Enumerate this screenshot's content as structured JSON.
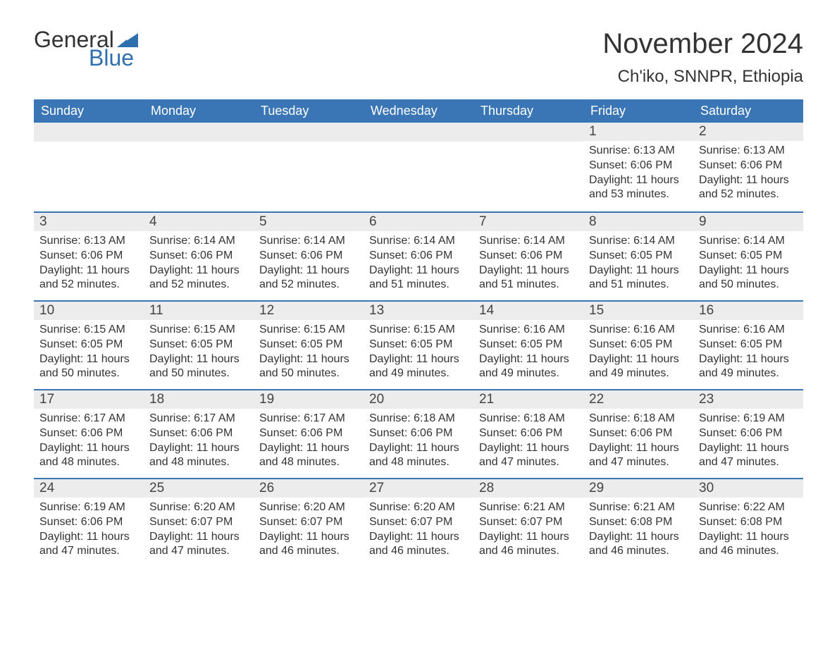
{
  "brand": {
    "text1": "General",
    "text2": "Blue",
    "icon_color": "#2f6fae"
  },
  "title": "November 2024",
  "location": "Ch'iko, SNNPR, Ethiopia",
  "colors": {
    "header_bg": "#3a76b5",
    "header_text": "#ffffff",
    "row_divider": "#3a76b5",
    "daynum_bg": "#ececec",
    "body_text": "#333333",
    "page_bg": "#ffffff"
  },
  "typography": {
    "title_fontsize": 40,
    "location_fontsize": 24,
    "weekday_fontsize": 18,
    "daynum_fontsize": 19,
    "cell_fontsize": 16
  },
  "weekdays": [
    "Sunday",
    "Monday",
    "Tuesday",
    "Wednesday",
    "Thursday",
    "Friday",
    "Saturday"
  ],
  "weeks": [
    [
      null,
      null,
      null,
      null,
      null,
      {
        "n": "1",
        "sr": "6:13 AM",
        "ss": "6:06 PM",
        "dh": "11",
        "dm": "53"
      },
      {
        "n": "2",
        "sr": "6:13 AM",
        "ss": "6:06 PM",
        "dh": "11",
        "dm": "52"
      }
    ],
    [
      {
        "n": "3",
        "sr": "6:13 AM",
        "ss": "6:06 PM",
        "dh": "11",
        "dm": "52"
      },
      {
        "n": "4",
        "sr": "6:14 AM",
        "ss": "6:06 PM",
        "dh": "11",
        "dm": "52"
      },
      {
        "n": "5",
        "sr": "6:14 AM",
        "ss": "6:06 PM",
        "dh": "11",
        "dm": "52"
      },
      {
        "n": "6",
        "sr": "6:14 AM",
        "ss": "6:06 PM",
        "dh": "11",
        "dm": "51"
      },
      {
        "n": "7",
        "sr": "6:14 AM",
        "ss": "6:06 PM",
        "dh": "11",
        "dm": "51"
      },
      {
        "n": "8",
        "sr": "6:14 AM",
        "ss": "6:05 PM",
        "dh": "11",
        "dm": "51"
      },
      {
        "n": "9",
        "sr": "6:14 AM",
        "ss": "6:05 PM",
        "dh": "11",
        "dm": "50"
      }
    ],
    [
      {
        "n": "10",
        "sr": "6:15 AM",
        "ss": "6:05 PM",
        "dh": "11",
        "dm": "50"
      },
      {
        "n": "11",
        "sr": "6:15 AM",
        "ss": "6:05 PM",
        "dh": "11",
        "dm": "50"
      },
      {
        "n": "12",
        "sr": "6:15 AM",
        "ss": "6:05 PM",
        "dh": "11",
        "dm": "50"
      },
      {
        "n": "13",
        "sr": "6:15 AM",
        "ss": "6:05 PM",
        "dh": "11",
        "dm": "49"
      },
      {
        "n": "14",
        "sr": "6:16 AM",
        "ss": "6:05 PM",
        "dh": "11",
        "dm": "49"
      },
      {
        "n": "15",
        "sr": "6:16 AM",
        "ss": "6:05 PM",
        "dh": "11",
        "dm": "49"
      },
      {
        "n": "16",
        "sr": "6:16 AM",
        "ss": "6:05 PM",
        "dh": "11",
        "dm": "49"
      }
    ],
    [
      {
        "n": "17",
        "sr": "6:17 AM",
        "ss": "6:06 PM",
        "dh": "11",
        "dm": "48"
      },
      {
        "n": "18",
        "sr": "6:17 AM",
        "ss": "6:06 PM",
        "dh": "11",
        "dm": "48"
      },
      {
        "n": "19",
        "sr": "6:17 AM",
        "ss": "6:06 PM",
        "dh": "11",
        "dm": "48"
      },
      {
        "n": "20",
        "sr": "6:18 AM",
        "ss": "6:06 PM",
        "dh": "11",
        "dm": "48"
      },
      {
        "n": "21",
        "sr": "6:18 AM",
        "ss": "6:06 PM",
        "dh": "11",
        "dm": "47"
      },
      {
        "n": "22",
        "sr": "6:18 AM",
        "ss": "6:06 PM",
        "dh": "11",
        "dm": "47"
      },
      {
        "n": "23",
        "sr": "6:19 AM",
        "ss": "6:06 PM",
        "dh": "11",
        "dm": "47"
      }
    ],
    [
      {
        "n": "24",
        "sr": "6:19 AM",
        "ss": "6:06 PM",
        "dh": "11",
        "dm": "47"
      },
      {
        "n": "25",
        "sr": "6:20 AM",
        "ss": "6:07 PM",
        "dh": "11",
        "dm": "47"
      },
      {
        "n": "26",
        "sr": "6:20 AM",
        "ss": "6:07 PM",
        "dh": "11",
        "dm": "46"
      },
      {
        "n": "27",
        "sr": "6:20 AM",
        "ss": "6:07 PM",
        "dh": "11",
        "dm": "46"
      },
      {
        "n": "28",
        "sr": "6:21 AM",
        "ss": "6:07 PM",
        "dh": "11",
        "dm": "46"
      },
      {
        "n": "29",
        "sr": "6:21 AM",
        "ss": "6:08 PM",
        "dh": "11",
        "dm": "46"
      },
      {
        "n": "30",
        "sr": "6:22 AM",
        "ss": "6:08 PM",
        "dh": "11",
        "dm": "46"
      }
    ]
  ],
  "labels": {
    "sunrise": "Sunrise: ",
    "sunset": "Sunset: ",
    "daylight_prefix": "Daylight: ",
    "hours_word": " hours",
    "and_word": "and ",
    "minutes_word": " minutes."
  }
}
